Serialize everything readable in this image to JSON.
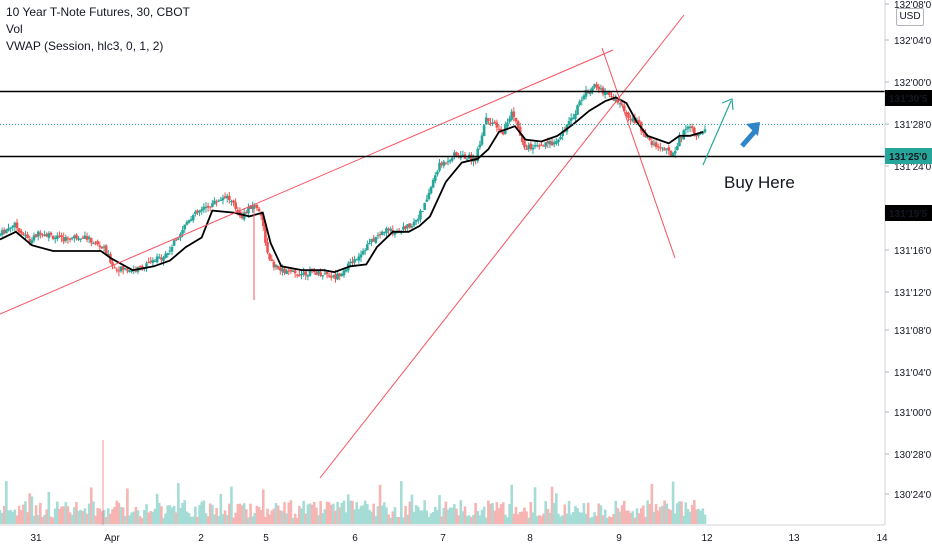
{
  "legend": {
    "title": "10 Year T-Note Futures, 30, CBOT",
    "volume": "Vol",
    "vwap": "VWAP (Session, hlc3, 0, 1, 2)"
  },
  "currency": "USD",
  "annotation": "Buy Here",
  "colors": {
    "up": "#26a69a",
    "down": "#ef5350",
    "vwap": "#000000",
    "trendline": "#f7525f",
    "hline": "#000000",
    "arrow": "#2196f3",
    "last_price": "#26a69a"
  },
  "chart_data": {
    "type": "candlestick",
    "y_unit": "32nds of a point",
    "y_ticks": [
      "132'08'0",
      "132'04'0",
      "132'00'0",
      "131'28'0",
      "131'24'0",
      "131'16'0",
      "131'12'0",
      "131'08'0",
      "131'04'0",
      "131'00'0",
      "130'28'0",
      "130'24'0"
    ],
    "x_ticks": [
      "31",
      "Apr",
      "2",
      "5",
      "6",
      "7",
      "8",
      "9",
      "12",
      "13",
      "14"
    ],
    "price_labels": [
      {
        "label": "131'30'5",
        "role": "resistance-line"
      },
      {
        "label": "131'25'0",
        "role": "last-price"
      },
      {
        "label": "131'19'5",
        "role": "support-line"
      }
    ],
    "price_path": [
      [
        31.0,
        131.2
      ],
      [
        31.3,
        131.26
      ],
      [
        31.6,
        131.17
      ],
      [
        31.8,
        131.22
      ],
      [
        32.2,
        131.18
      ],
      [
        32.6,
        131.2
      ],
      [
        33.0,
        131.13
      ],
      [
        33.2,
        131.03
      ],
      [
        33.6,
        131.02
      ],
      [
        33.9,
        131.06
      ],
      [
        34.2,
        131.11
      ],
      [
        34.6,
        131.29
      ],
      [
        35.0,
        131.36
      ],
      [
        35.3,
        131.41
      ],
      [
        35.6,
        131.3
      ],
      [
        35.8,
        131.36
      ],
      [
        35.95,
        131.33
      ],
      [
        36.1,
        131.07
      ],
      [
        36.3,
        131.02
      ],
      [
        36.6,
        131.0
      ],
      [
        36.9,
        131.01
      ],
      [
        37.2,
        131.0
      ],
      [
        37.35,
        130.98
      ],
      [
        37.7,
        131.07
      ],
      [
        38.0,
        131.16
      ],
      [
        38.3,
        131.23
      ],
      [
        38.5,
        131.22
      ],
      [
        38.8,
        131.26
      ],
      [
        39.0,
        131.33
      ],
      [
        39.3,
        131.56
      ],
      [
        39.6,
        131.62
      ],
      [
        40.0,
        131.6
      ],
      [
        40.2,
        131.82
      ],
      [
        40.5,
        131.73
      ],
      [
        40.7,
        131.85
      ],
      [
        40.9,
        131.66
      ],
      [
        41.2,
        131.66
      ],
      [
        41.5,
        131.69
      ],
      [
        41.8,
        131.8
      ],
      [
        42.0,
        131.92
      ],
      [
        42.2,
        131.98
      ],
      [
        42.5,
        131.94
      ],
      [
        42.7,
        131.89
      ],
      [
        42.9,
        131.82
      ],
      [
        43.05,
        131.79
      ],
      [
        43.3,
        131.68
      ],
      [
        43.5,
        131.66
      ],
      [
        43.7,
        131.62
      ],
      [
        43.8,
        131.68
      ],
      [
        44.0,
        131.78
      ],
      [
        44.2,
        131.72
      ],
      [
        44.3,
        131.74
      ]
    ],
    "vwap_path": [
      [
        31.0,
        131.18
      ],
      [
        31.3,
        131.22
      ],
      [
        31.6,
        131.15
      ],
      [
        32.0,
        131.12
      ],
      [
        32.5,
        131.12
      ],
      [
        32.9,
        131.12
      ],
      [
        33.1,
        131.08
      ],
      [
        33.5,
        131.02
      ],
      [
        33.9,
        131.04
      ],
      [
        34.2,
        131.07
      ],
      [
        34.5,
        131.14
      ],
      [
        34.8,
        131.19
      ],
      [
        35.0,
        131.33
      ],
      [
        35.4,
        131.32
      ],
      [
        35.7,
        131.3
      ],
      [
        35.95,
        131.32
      ],
      [
        36.1,
        131.16
      ],
      [
        36.3,
        131.04
      ],
      [
        36.7,
        131.02
      ],
      [
        37.1,
        131.02
      ],
      [
        37.3,
        131.01
      ],
      [
        37.6,
        131.04
      ],
      [
        37.9,
        131.05
      ],
      [
        38.1,
        131.14
      ],
      [
        38.4,
        131.22
      ],
      [
        38.7,
        131.22
      ],
      [
        38.9,
        131.25
      ],
      [
        39.1,
        131.3
      ],
      [
        39.4,
        131.48
      ],
      [
        39.7,
        131.58
      ],
      [
        40.0,
        131.6
      ],
      [
        40.2,
        131.65
      ],
      [
        40.4,
        131.74
      ],
      [
        40.7,
        131.77
      ],
      [
        40.9,
        131.7
      ],
      [
        41.2,
        131.69
      ],
      [
        41.5,
        131.72
      ],
      [
        41.8,
        131.78
      ],
      [
        42.1,
        131.85
      ],
      [
        42.4,
        131.9
      ],
      [
        42.6,
        131.92
      ],
      [
        42.8,
        131.89
      ],
      [
        43.0,
        131.79
      ],
      [
        43.2,
        131.72
      ],
      [
        43.4,
        131.7
      ],
      [
        43.6,
        131.68
      ],
      [
        43.8,
        131.72
      ],
      [
        44.0,
        131.72
      ],
      [
        44.25,
        131.74
      ]
    ],
    "trendlines": [
      {
        "name": "upper-wedge-line",
        "points": [
          [
            31.0,
            131.26
          ],
          [
            43.5,
            132.2
          ]
        ]
      },
      {
        "name": "lower-wedge-line",
        "points": [
          [
            37.35,
            130.92
          ],
          [
            44.2,
            132.45
          ]
        ]
      },
      {
        "name": "falling-line",
        "points": [
          [
            42.3,
            132.15
          ],
          [
            43.6,
            131.64
          ]
        ]
      }
    ],
    "hlines": [
      131.955,
      131.615
    ],
    "last_price": 131.78
  }
}
